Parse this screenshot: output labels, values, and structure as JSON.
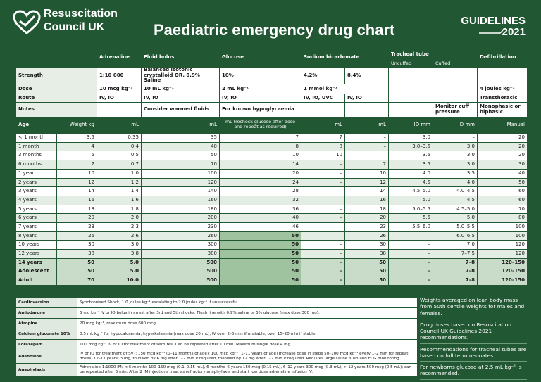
{
  "header": {
    "org": [
      "Resuscitation",
      "Council UK"
    ],
    "title": "Paediatric emergency drug chart",
    "badge": [
      "GUIDELINES",
      "2021"
    ]
  },
  "table": {
    "groups": [
      "Adrenaline",
      "Fluid bolus",
      "Glucose",
      "Sodium bicarbonate",
      "Tracheal tube",
      "Defibrillation"
    ],
    "tube_types": [
      "Uncuffed",
      "Cuffed"
    ],
    "strength": {
      "label": "Strength",
      "values": [
        "1:10 000",
        "Balanced isotonic crystalloid OR, 0.9% Saline",
        "10%",
        "4.2%",
        "8.4%"
      ]
    },
    "dose": {
      "label": "Dose",
      "values": [
        "10 mcg kg⁻¹",
        "10 mL kg⁻¹",
        "2 mL kg⁻¹",
        "1 mmol kg⁻¹",
        "4 joules kg⁻¹"
      ]
    },
    "route": {
      "label": "Route",
      "values": [
        "IV, IO",
        "IV, IO",
        "IV, IO",
        "IV, IO, UVC",
        "IV, IO",
        "Transthoracic"
      ]
    },
    "notes": {
      "label": "Notes",
      "values": [
        "Consider warmed fluids",
        "For known hypoglycaemia",
        "Monitor cuff pressure",
        "Monophasic or biphasic"
      ]
    },
    "columns": [
      "Age",
      "Weight kg",
      "mL",
      "mL",
      "mL (recheck glucose after dose and repeat as required)",
      "mL",
      "mL",
      "ID mm",
      "ID mm",
      "Manual"
    ],
    "rows": [
      [
        "< 1 month",
        "3.5",
        "0.35",
        "35",
        "7",
        "7",
        "–",
        "3.0",
        "–",
        "20"
      ],
      [
        "1 month",
        "4",
        "0.4",
        "40",
        "8",
        "8",
        "–",
        "3.0–3.5",
        "3.0",
        "20"
      ],
      [
        "3 months",
        "5",
        "0.5",
        "50",
        "10",
        "10",
        "–",
        "3.5",
        "3.0",
        "20"
      ],
      [
        "6 months",
        "7",
        "0.7",
        "70",
        "14",
        "–",
        "7",
        "3.5",
        "3.0",
        "30"
      ],
      [
        "1 year",
        "10",
        "1.0",
        "100",
        "20",
        "–",
        "10",
        "4.0",
        "3.5",
        "40"
      ],
      [
        "2 years",
        "12",
        "1.2",
        "120",
        "24",
        "–",
        "12",
        "4.5",
        "4.0",
        "50"
      ],
      [
        "3 years",
        "14",
        "1.4",
        "140",
        "28",
        "–",
        "14",
        "4.5–5.0",
        "4.0–4.5",
        "60"
      ],
      [
        "4 years",
        "16",
        "1.6",
        "160",
        "32",
        "–",
        "16",
        "5.0",
        "4.5",
        "60"
      ],
      [
        "5 years",
        "18",
        "1.8",
        "180",
        "36",
        "–",
        "18",
        "5.0–5.5",
        "4.5–5.0",
        "70"
      ],
      [
        "6 years",
        "20",
        "2.0",
        "200",
        "40",
        "–",
        "20",
        "5.5",
        "5.0",
        "80"
      ],
      [
        "7 years",
        "23",
        "2.3",
        "230",
        "46",
        "–",
        "23",
        "5.5–6.0",
        "5.0–5.5",
        "100"
      ],
      [
        "8 years",
        "26",
        "2.6",
        "260",
        "50",
        "–",
        "26",
        "–",
        "6.0–6.5",
        "100"
      ],
      [
        "10 years",
        "30",
        "3.0",
        "300",
        "50",
        "–",
        "30",
        "–",
        "7.0",
        "120"
      ],
      [
        "12 years",
        "38",
        "3.8",
        "380",
        "50",
        "–",
        "38",
        "–",
        "7–7.5",
        "120"
      ],
      [
        "14 years",
        "50",
        "5.0",
        "500",
        "50",
        "–",
        "50",
        "–",
        "7–8",
        "120–150"
      ],
      [
        "Adolescent",
        "50",
        "5.0",
        "500",
        "50",
        "–",
        "50",
        "–",
        "7–8",
        "120–150"
      ],
      [
        "Adult",
        "70",
        "10.0",
        "500",
        "50",
        "–",
        "50",
        "–",
        "7–8",
        "120–150"
      ]
    ]
  },
  "drugs": [
    [
      "Cardioversion",
      "Synchronised Shock, 1.0 joules kg⁻¹ escalating to 2.0 joules kg⁻¹ if unsuccessful."
    ],
    [
      "Amiodarone",
      "5 mg kg⁻¹ IV or IO bolus in arrest after 3rd and 5th shocks. Flush line with 0.9% saline or 5% glucose (max dose 300 mg)."
    ],
    [
      "Atropine",
      "20 mcg kg⁻¹, maximum dose 600 mcg."
    ],
    [
      "Calcium gluconate 10%",
      "0.5 mL kg⁻¹ for hypocalcaemia, hyperkalaemia (max dose 20 mL); IV over 2–5 min if unstable, over 15–20 min if stable."
    ],
    [
      "Lorazepam",
      "100 mcg kg⁻¹ IV or IO for treatment of seizures. Can be repeated after 10 min. Maximum single dose 4 mg."
    ],
    [
      "Adenosine",
      "IV or IO for treatment of SVT: 150 mcg kg⁻¹ (0–11 months of age); 100 mcg kg⁻¹ (1–11 years of age) Increase dose in steps 50–100 mcg kg⁻¹ every 1–2 min for repeat doses. 12–17 years: 3 mg, followed by 6 mg after 1–2 min if required, followed by 12 mg after 1–2 min if required. Requires large saline flush and ECG monitoring."
    ],
    [
      "Anaphylaxis",
      "Adrenaline 1:1000 IM: < 6 months 100–150 mcg (0.1–0.15 mL), 6 months–6 years 150 mcg (0.15 mL), 6–12 years 300 mcg (0.3 mL), > 12 years 500 mcg (0.5 mL); can be repeated after 5 min. After 2 IM injections treat as refractory anaphylaxis and start low dose adrenaline infusion IV."
    ]
  ],
  "footnotes": [
    "Weights averaged on lean body mass from 50th centile weights for males and females.",
    "Drug doses based on Resuscitation Council UK Guidelines 2021 recommendations.",
    "Recommendations for tracheal tubes are based on full term neonates.",
    "For newborns glucose at 2.5 mL kg⁻¹ is recommended."
  ]
}
